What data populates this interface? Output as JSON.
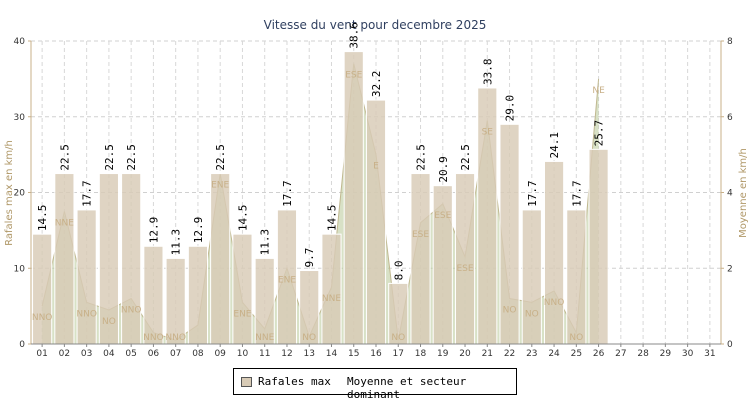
{
  "chart_data": {
    "type": "bar",
    "title": "Vitesse du vent pour decembre 2025",
    "ylabel": "Rafales max en km/h",
    "y2label": "Moyenne en km/h",
    "ylim": [
      0,
      40
    ],
    "y2lim": [
      0,
      8
    ],
    "yticks": [
      "0",
      "10",
      "20",
      "30",
      "40"
    ],
    "y2ticks": [
      "0",
      "2",
      "4",
      "6",
      "8"
    ],
    "grid": true,
    "categories": [
      "01",
      "02",
      "03",
      "04",
      "05",
      "06",
      "07",
      "08",
      "09",
      "10",
      "11",
      "12",
      "13",
      "14",
      "15",
      "16",
      "17",
      "18",
      "19",
      "20",
      "21",
      "22",
      "23",
      "24",
      "25",
      "26",
      "27",
      "28",
      "29",
      "30",
      "31"
    ],
    "series": [
      {
        "name": "Rafales max",
        "type": "bar",
        "color": "#d8cbb6",
        "values": [
          14.5,
          22.5,
          17.7,
          22.5,
          22.5,
          12.9,
          11.3,
          12.9,
          22.5,
          14.5,
          11.3,
          17.7,
          9.7,
          14.5,
          38.6,
          32.2,
          8.0,
          22.5,
          20.9,
          22.5,
          33.8,
          29.0,
          17.7,
          24.1,
          17.7,
          25.7,
          null,
          null,
          null,
          null,
          null
        ],
        "labels": [
          "14.5",
          "22.5",
          "17.7",
          "22.5",
          "22.5",
          "12.9",
          "11.3",
          "12.9",
          "22.5",
          "14.5",
          "11.3",
          "17.7",
          "9.7",
          "14.5",
          "38.6",
          "32.2",
          "8.0",
          "22.5",
          "20.9",
          "22.5",
          "33.8",
          "29.0",
          "17.7",
          "24.1",
          "17.7",
          "25.7",
          "",
          "",
          "",
          "",
          ""
        ]
      },
      {
        "name": "Moyenne et secteur dominant",
        "type": "area",
        "color": "#b8c898",
        "values": [
          1.0,
          3.5,
          1.1,
          0.9,
          1.2,
          0.3,
          0.1,
          0.5,
          4.5,
          1.1,
          0.4,
          2.0,
          0.2,
          1.5,
          7.4,
          5.0,
          0.1,
          3.2,
          3.7,
          2.3,
          5.9,
          1.2,
          1.1,
          1.4,
          0.3,
          7.0,
          null,
          null,
          null,
          null,
          null
        ],
        "directions": [
          "NNO",
          "NNE",
          "NNO",
          "NO",
          "NNO",
          "NNO",
          "NNO",
          "",
          "ENE",
          "ENE",
          "NNE",
          "ENE",
          "NO",
          "NNE",
          "ESE",
          "E",
          "NO",
          "ESE",
          "ESE",
          "ESE",
          "SE",
          "NO",
          "NO",
          "NNO",
          "NO",
          "NE",
          "",
          "",
          "",
          "",
          ""
        ]
      }
    ],
    "legend": [
      "Rafales max",
      "Moyenne et secteur dominant"
    ],
    "legend_position": "bottom-center"
  }
}
